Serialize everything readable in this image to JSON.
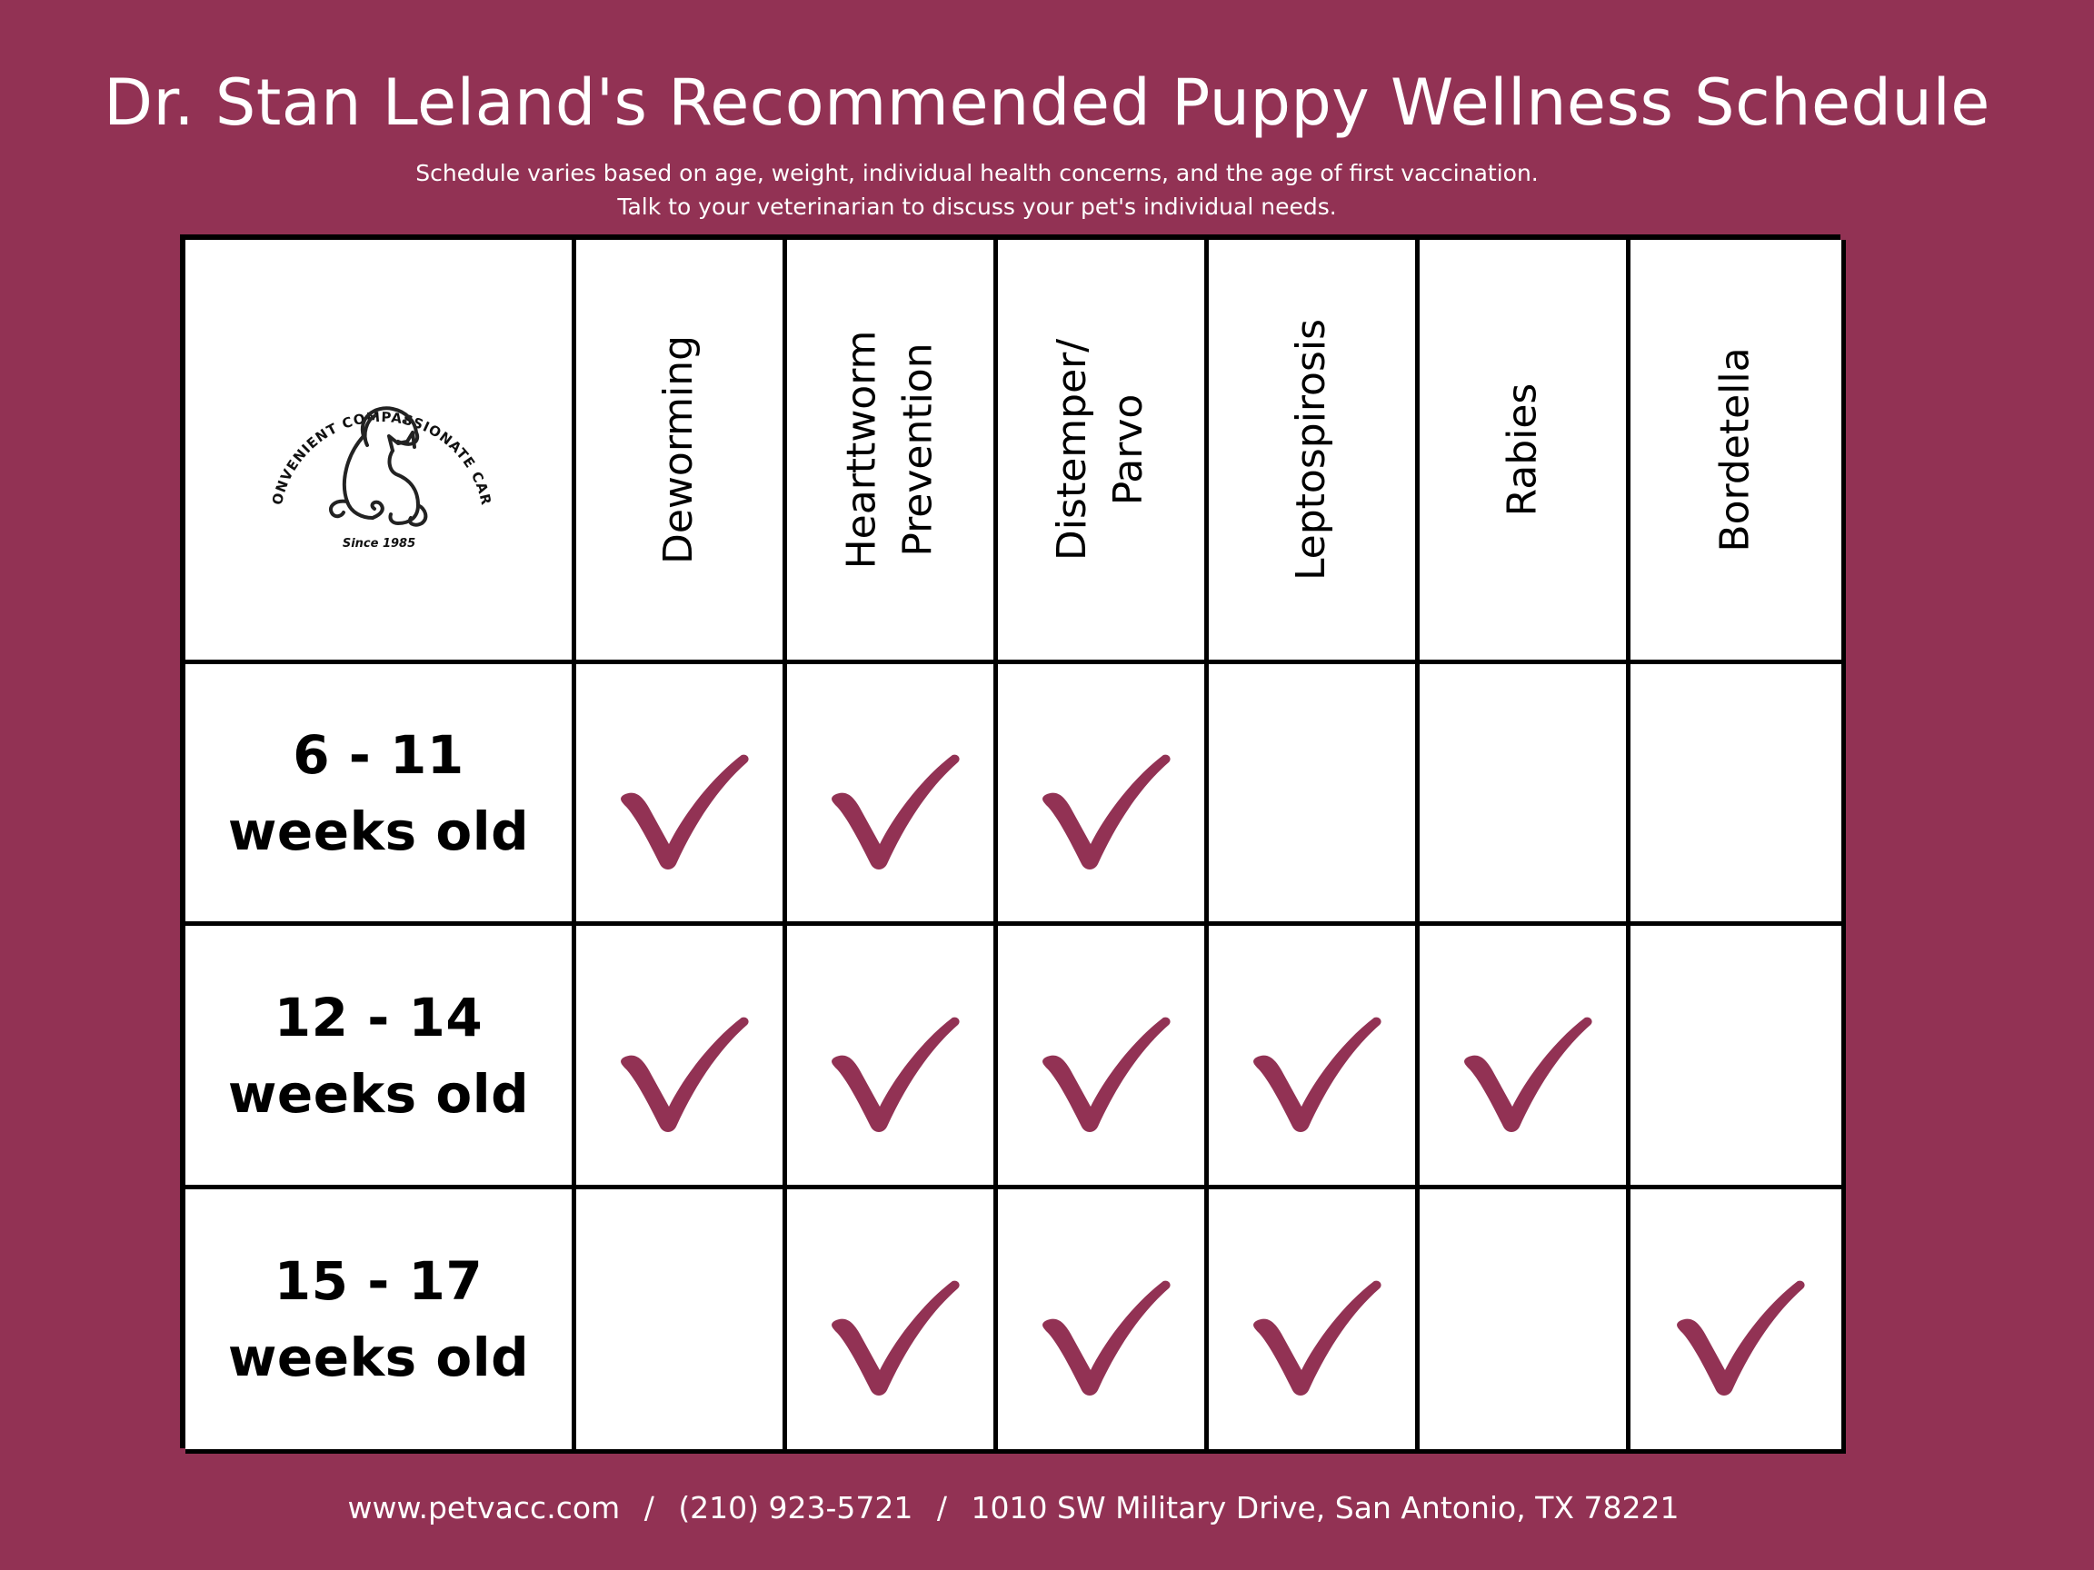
{
  "header": {
    "title": "Dr. Stan Leland's Recommended Puppy Wellness Schedule",
    "subtitle_line1": "Schedule varies based on age, weight, individual health concerns, and the age of first vaccination.",
    "subtitle_line2": "Talk to your veterinarian to discuss your pet's individual needs."
  },
  "logo": {
    "arc_text": "CONVENIENT COMPASSIONATE CARE",
    "since": "Since 1985"
  },
  "columns": [
    {
      "line1": "Deworming",
      "line2": ""
    },
    {
      "line1": "Hearttworm",
      "line2": "Prevention"
    },
    {
      "line1": "Distemper/",
      "line2": "Parvo"
    },
    {
      "line1": "Leptospirosis",
      "line2": ""
    },
    {
      "line1": "Rabies",
      "line2": ""
    },
    {
      "line1": "Bordetella",
      "line2": ""
    }
  ],
  "rows": [
    {
      "range": "6 - 11",
      "unit": "weeks old",
      "checks": [
        true,
        true,
        true,
        false,
        false,
        false
      ]
    },
    {
      "range": "12 - 14",
      "unit": "weeks old",
      "checks": [
        true,
        true,
        true,
        true,
        true,
        false
      ]
    },
    {
      "range": "15 - 17",
      "unit": "weeks old",
      "checks": [
        false,
        true,
        true,
        true,
        false,
        true
      ]
    }
  ],
  "colors": {
    "background": "#923254",
    "check": "#923254",
    "table": "#ffffff",
    "lines": "#000000"
  },
  "icons": {
    "check": "checkmark-icon",
    "logo": "dog-cat-logo-icon"
  },
  "footer": {
    "website": "www.petvacc.com",
    "phone": "(210) 923-5721",
    "address": "1010 SW Military Drive, San Antonio, TX 78221",
    "separator": "/"
  }
}
